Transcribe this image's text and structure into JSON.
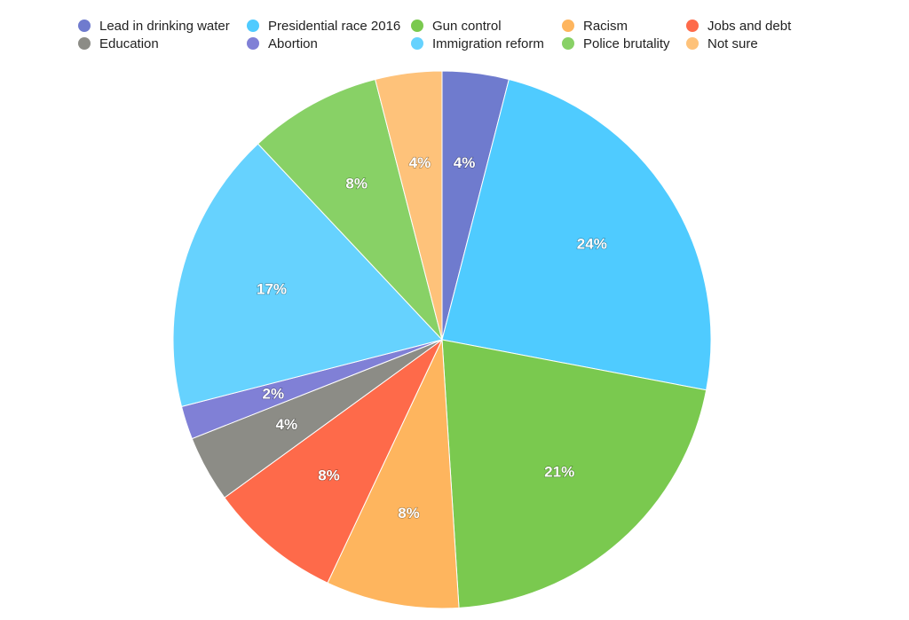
{
  "chart_data": {
    "type": "pie",
    "title": "",
    "legend_placement": "top",
    "slices": [
      {
        "name": "Lead in drinking water",
        "value": 4,
        "label": "4%",
        "color": "#6F7BCE"
      },
      {
        "name": "Presidential race 2016",
        "value": 24,
        "label": "24%",
        "color": "#4FCBFF"
      },
      {
        "name": "Gun control",
        "value": 21,
        "label": "21%",
        "color": "#7AC94F"
      },
      {
        "name": "Racism",
        "value": 8,
        "label": "8%",
        "color": "#FEB55E"
      },
      {
        "name": "Jobs and debt",
        "value": 8,
        "label": "8%",
        "color": "#FE6A4A"
      },
      {
        "name": "Education",
        "value": 4,
        "label": "4%",
        "color": "#8C8C86"
      },
      {
        "name": "Abortion",
        "value": 2,
        "label": "2%",
        "color": "#8080D6"
      },
      {
        "name": "Immigration reform",
        "value": 17,
        "label": "17%",
        "color": "#66D2FE"
      },
      {
        "name": "Police brutality",
        "value": 8,
        "label": "8%",
        "color": "#88D166"
      },
      {
        "name": "Not sure",
        "value": 4,
        "label": "4%",
        "color": "#FEC27A"
      }
    ]
  }
}
